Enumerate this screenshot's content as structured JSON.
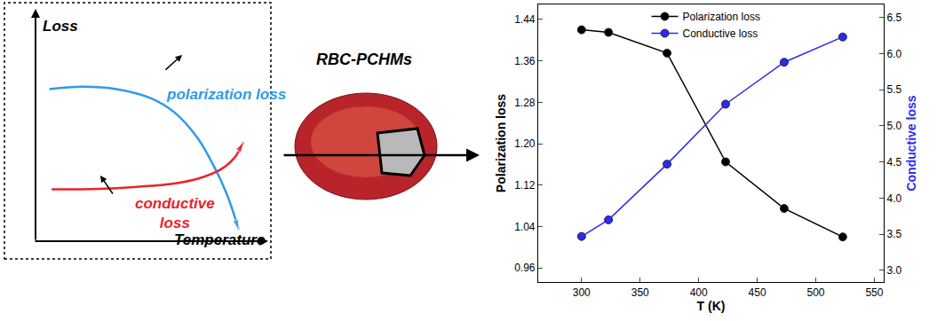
{
  "chart_data": [
    {
      "type": "line",
      "x_label": "Temperature",
      "y_label": "Loss",
      "tick_labels": false,
      "xlim": [
        0,
        10
      ],
      "ylim": [
        0,
        10
      ],
      "series": [
        {
          "name": "polarization loss",
          "color": "#2f9be8",
          "x": [
            0.6,
            2,
            3.5,
            5,
            6,
            7,
            7.7,
            8.3,
            8.8
          ],
          "values": [
            6.6,
            6.7,
            6.6,
            6.2,
            5.6,
            4.5,
            3.3,
            2.0,
            0.5
          ]
        },
        {
          "name": "conductive loss",
          "color": "#e8242a",
          "x": [
            0.7,
            2,
            3.5,
            5,
            6,
            7,
            8,
            8.6,
            9.0
          ],
          "values": [
            2.25,
            2.25,
            2.3,
            2.4,
            2.5,
            2.7,
            3.1,
            3.6,
            4.3
          ]
        }
      ]
    },
    {
      "type": "line",
      "x_label": "T (K)",
      "y_label": "Polarization loss",
      "y2_label": "Conductive loss",
      "xlim": [
        263,
        558
      ],
      "xticks": [
        300,
        350,
        400,
        450,
        500,
        550
      ],
      "ylim": [
        0.933,
        1.469
      ],
      "yticks": [
        0.96,
        1.04,
        1.12,
        {
          "value": 1.2,
          "label": "1.20"
        },
        1.28,
        1.36,
        1.44
      ],
      "y2lim": [
        2.84,
        6.68
      ],
      "y2ticks": [
        {
          "value": 3,
          "label": "3.0"
        },
        3.5,
        {
          "value": 4,
          "label": "4.0"
        },
        4.5,
        {
          "value": 5,
          "label": "5.0"
        },
        5.5,
        {
          "value": 6,
          "label": "6.0"
        },
        6.5
      ],
      "legend": "top",
      "x": [
        300,
        323,
        373,
        423,
        473,
        523
      ],
      "series": [
        {
          "name": "Polarization loss",
          "color": "#000000",
          "marker": "circle",
          "values": [
            1.42,
            1.415,
            1.375,
            1.165,
            1.075,
            1.02
          ]
        },
        {
          "name": "Conductive loss",
          "color": "#2b2bf5",
          "marker": "circle",
          "axis": "y2",
          "values": [
            3.47,
            3.7,
            4.47,
            5.3,
            5.88,
            6.23
          ]
        }
      ]
    }
  ],
  "diagram": {
    "label": "RBC-PCHMs"
  }
}
